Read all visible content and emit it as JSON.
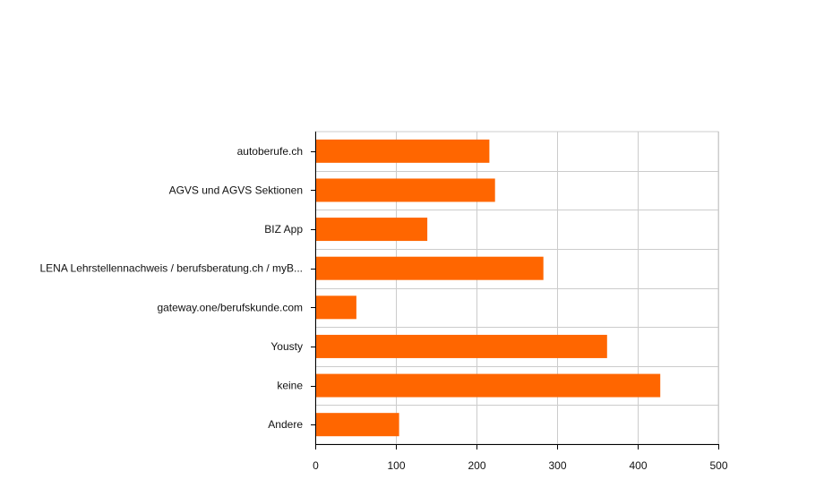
{
  "chart_data": {
    "type": "bar",
    "orientation": "horizontal",
    "categories": [
      "autoberufe.ch",
      "AGVS und AGVS Sektionen",
      "BIZ App",
      "LENA Lehrstellennachweis / berufsberatung.ch / myB...",
      "gateway.one/berufskunde.com",
      "Yousty",
      "keine",
      "Andere"
    ],
    "values": [
      216,
      223,
      139,
      283,
      51,
      362,
      428,
      104
    ],
    "xlim": [
      0,
      500
    ],
    "xticks": [
      0,
      100,
      200,
      300,
      400,
      500
    ],
    "grid": true,
    "title": "",
    "xlabel": "",
    "ylabel": "",
    "colors": {
      "bar": "#ff6600",
      "grid": "#cccccc",
      "axis": "#000000",
      "text": "#111111"
    }
  }
}
